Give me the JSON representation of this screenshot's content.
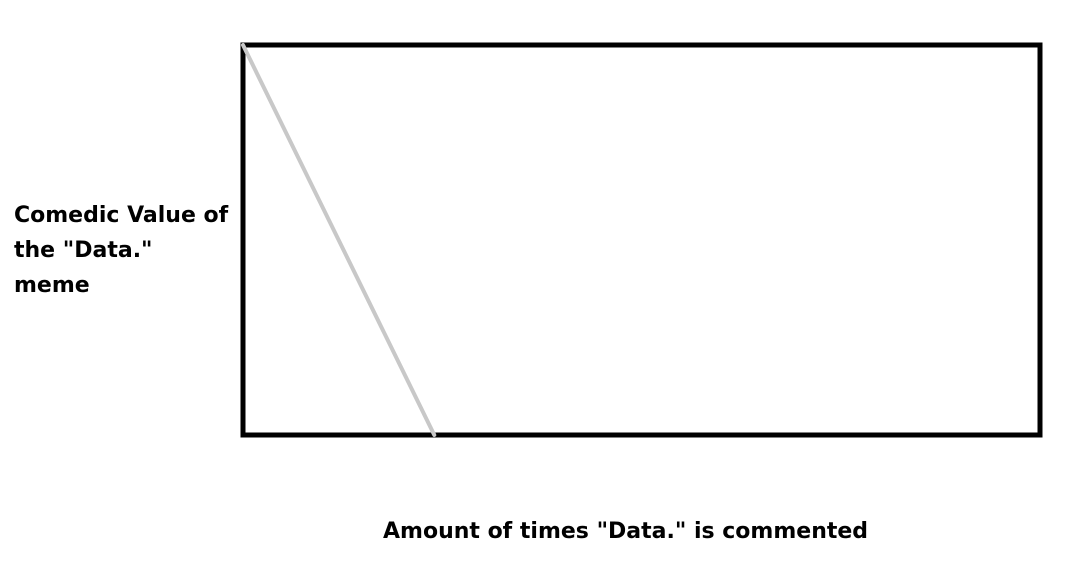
{
  "chart_data": {
    "type": "line",
    "title": "",
    "xlabel": "Amount of times \"Data.\" is commented",
    "ylabel": "Comedic Value of the \"Data.\" meme",
    "xlim": [
      0,
      1
    ],
    "ylim": [
      0,
      1
    ],
    "grid": false,
    "series": [
      {
        "x": [
          0,
          0.24
        ],
        "y": [
          1,
          0
        ],
        "color": "#c8c8c8"
      }
    ]
  },
  "colors": {
    "frame": "#000000",
    "background": "#ffffff"
  }
}
